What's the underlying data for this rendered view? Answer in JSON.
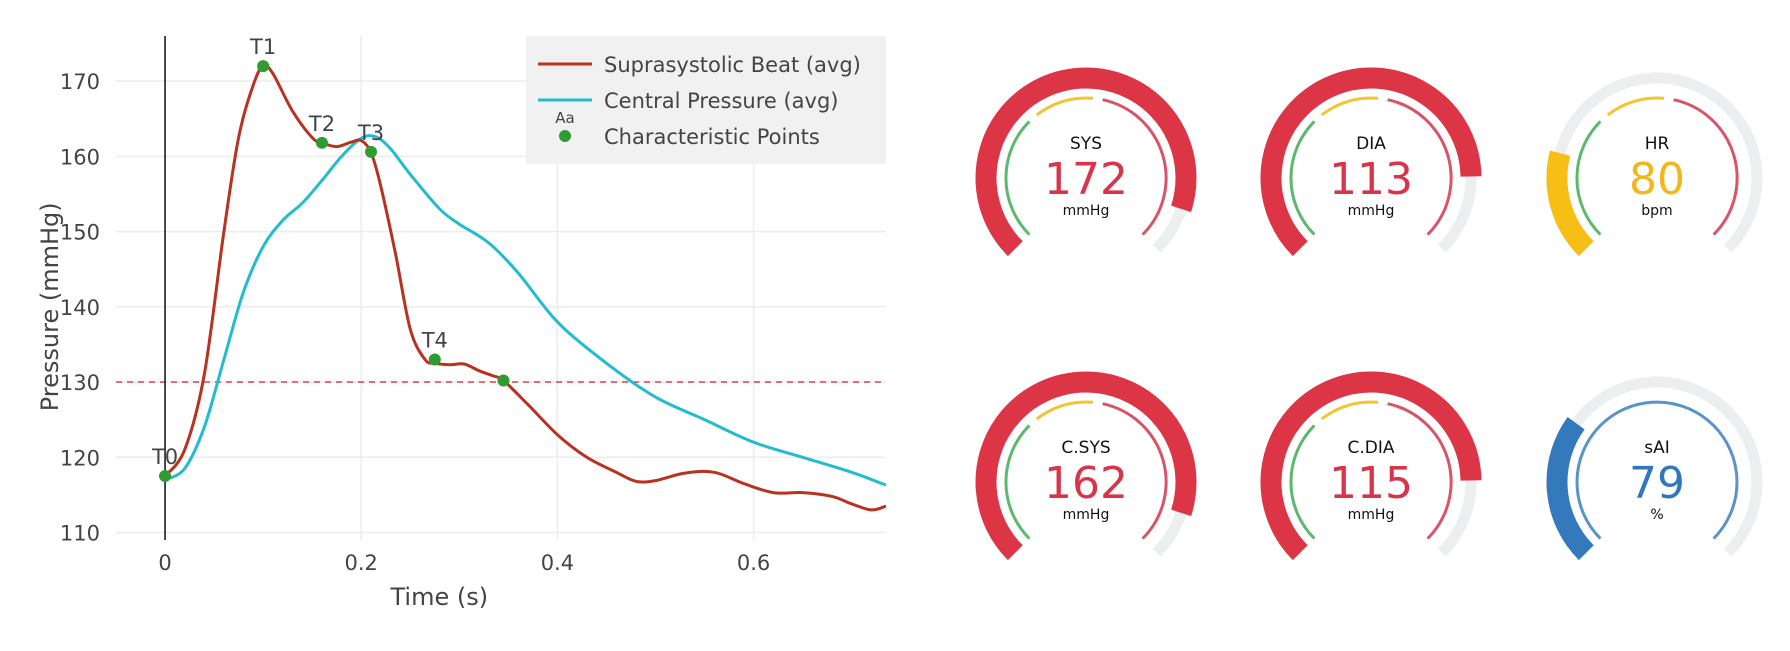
{
  "chart_data": {
    "type": "line",
    "title": "",
    "xlabel": "Time (s)",
    "ylabel": "Pressure (mmHg)",
    "xlim": [
      -0.05,
      0.735
    ],
    "ylim": [
      109,
      176
    ],
    "x_ticks": [
      0,
      0.2,
      0.4,
      0.6
    ],
    "x_tick_labels": [
      "0",
      "0.2",
      "0.4",
      "0.6"
    ],
    "y_ticks": [
      110,
      120,
      130,
      140,
      150,
      160,
      170
    ],
    "y_tick_labels": [
      "110",
      "120",
      "130",
      "140",
      "150",
      "160",
      "170"
    ],
    "grid": true,
    "legend_position": "top-right",
    "legend": {
      "items": [
        "Suprasystolic Beat (avg)",
        "Central Pressure (avg)",
        "Characteristic Points"
      ],
      "hint": "Aa"
    },
    "reference_line": {
      "y": 130,
      "color": "#e0404f",
      "style": "dashed"
    },
    "series": [
      {
        "name": "Suprasystolic Beat (avg)",
        "color": "#b83220",
        "x": [
          0,
          0.02,
          0.04,
          0.06,
          0.075,
          0.09,
          0.1,
          0.11,
          0.13,
          0.15,
          0.16,
          0.175,
          0.19,
          0.2,
          0.21,
          0.22,
          0.235,
          0.25,
          0.265,
          0.275,
          0.29,
          0.305,
          0.32,
          0.335,
          0.345,
          0.37,
          0.4,
          0.43,
          0.46,
          0.48,
          0.5,
          0.53,
          0.56,
          0.59,
          0.62,
          0.65,
          0.68,
          0.7,
          0.72,
          0.735
        ],
        "values": [
          117.5,
          121,
          131,
          150,
          162.5,
          169.5,
          172,
          171,
          166,
          162.5,
          161.8,
          161.3,
          161.9,
          162.1,
          160.5,
          156,
          147,
          137,
          133,
          132.5,
          132.3,
          132.4,
          131.5,
          130.8,
          130.2,
          127,
          123,
          120,
          118,
          116.8,
          116.9,
          117.9,
          118,
          116.5,
          115.3,
          115.3,
          114.8,
          113.8,
          113,
          113.5
        ]
      },
      {
        "name": "Central Pressure (avg)",
        "color": "#22bcd0",
        "x": [
          0,
          0.02,
          0.04,
          0.06,
          0.08,
          0.1,
          0.12,
          0.14,
          0.16,
          0.18,
          0.2,
          0.215,
          0.23,
          0.25,
          0.28,
          0.3,
          0.33,
          0.36,
          0.4,
          0.45,
          0.5,
          0.55,
          0.6,
          0.65,
          0.7,
          0.735
        ],
        "values": [
          117,
          118.5,
          124,
          133,
          142,
          148,
          151.5,
          153.8,
          156.8,
          160,
          162.4,
          162.6,
          161,
          157.6,
          153,
          151,
          148.5,
          144.5,
          138,
          132.5,
          128,
          125,
          122,
          120,
          118,
          116.3
        ]
      }
    ],
    "points": {
      "name": "Characteristic Points",
      "color": "#2e9c30",
      "labels": [
        "T0",
        "T1",
        "T2",
        "T3",
        "T4",
        ""
      ],
      "x": [
        0,
        0.1,
        0.16,
        0.21,
        0.275,
        0.345
      ],
      "y": [
        117.5,
        172,
        161.8,
        160.6,
        133,
        130.2
      ]
    }
  },
  "gauges": [
    {
      "label": "SYS",
      "value": "172",
      "unit": "mmHg",
      "value_color": "#d9354a",
      "fill_fraction": 0.9,
      "fill_color": "#dc3545",
      "inner": [
        "green",
        "yellow",
        "red"
      ]
    },
    {
      "label": "DIA",
      "value": "113",
      "unit": "mmHg",
      "value_color": "#d9354a",
      "fill_fraction": 0.83,
      "fill_color": "#dc3545",
      "inner": [
        "green",
        "yellow",
        "red"
      ]
    },
    {
      "label": "HR",
      "value": "80",
      "unit": "bpm",
      "value_color": "#f4b71b",
      "fill_fraction": 0.22,
      "fill_color": "#f7be16",
      "inner": [
        "green",
        "yellow",
        "red"
      ]
    },
    {
      "label": "C.SYS",
      "value": "162",
      "unit": "mmHg",
      "value_color": "#d9354a",
      "fill_fraction": 0.9,
      "fill_color": "#dc3545",
      "inner": [
        "green",
        "yellow",
        "red"
      ]
    },
    {
      "label": "C.DIA",
      "value": "115",
      "unit": "mmHg",
      "value_color": "#d9354a",
      "fill_fraction": 0.83,
      "fill_color": "#dc3545",
      "inner": [
        "green",
        "yellow",
        "red"
      ]
    },
    {
      "label": "sAI",
      "value": "79",
      "unit": "%",
      "value_color": "#2f78bf",
      "fill_fraction": 0.3,
      "fill_color": "#3579bd",
      "inner": [
        "blue"
      ]
    }
  ],
  "colors": {
    "grid": "#ececec",
    "track": "#eceeef",
    "zone_green": "#5cb86c",
    "zone_yellow": "#f4c430",
    "zone_red": "#d95468",
    "zone_blue": "#5b93c8"
  }
}
